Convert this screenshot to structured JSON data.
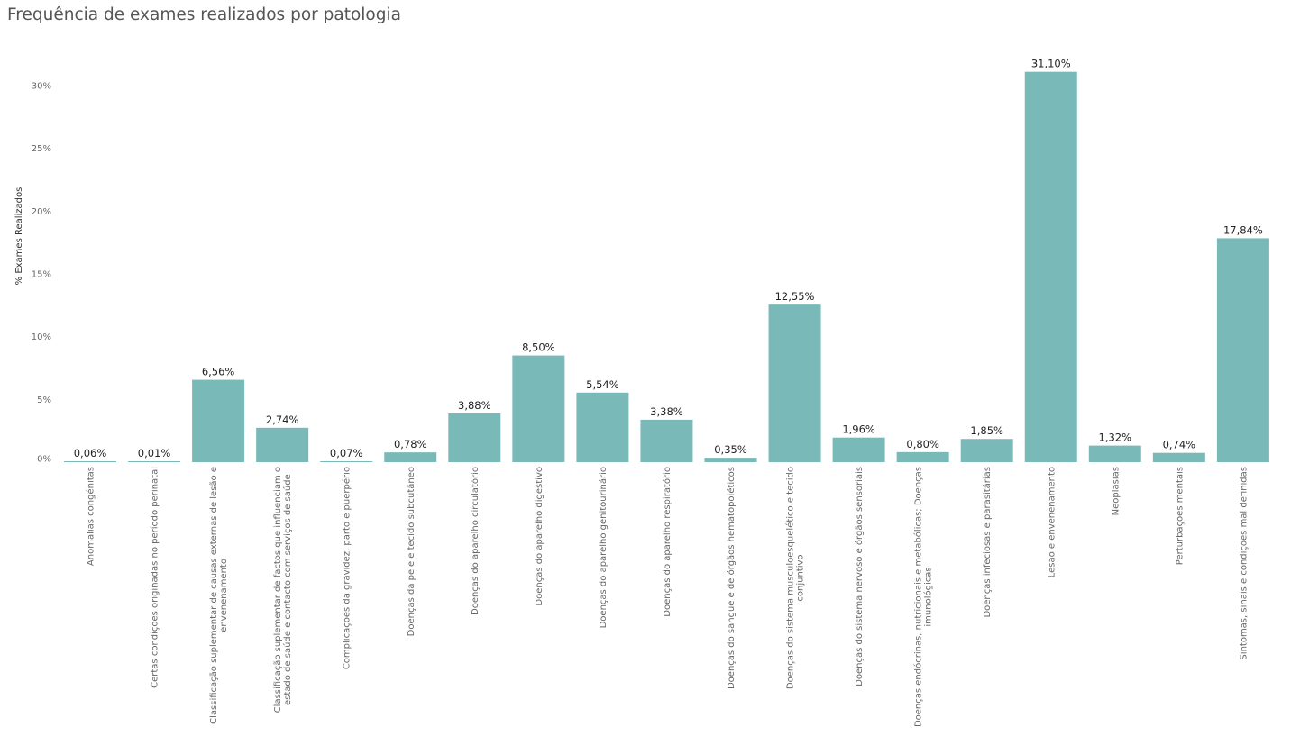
{
  "colors": {
    "bar": "#79bab8",
    "axis": "#cccccc"
  },
  "chart_data": {
    "type": "bar",
    "title": "Frequência de exames realizados por patologia",
    "ylabel": "% Exames Realizados",
    "ylim": [
      0,
      30
    ],
    "yticks": [
      "0%",
      "5%",
      "10%",
      "15%",
      "20%",
      "25%",
      "30%"
    ],
    "ytick_values": [
      0,
      5,
      10,
      15,
      20,
      25,
      30
    ],
    "categories": [
      [
        "Anomalias congénitas"
      ],
      [
        "Certas condições originadas no período perinatal"
      ],
      [
        "Classificação suplementar de causas externas de lesão e",
        "envenenamento"
      ],
      [
        "Classificação suplementar de factos que influenciam o",
        "estado de saúde e contacto com serviços de saúde"
      ],
      [
        "Complicações da gravidez, parto e puerpério"
      ],
      [
        "Doenças da pele e tecido subcutâneo"
      ],
      [
        "Doenças do aparelho circulatório"
      ],
      [
        "Doenças do aparelho digestivo"
      ],
      [
        "Doenças do aparelho genitourinário"
      ],
      [
        "Doenças do aparelho respiratório"
      ],
      [
        "Doenças do sangue e de órgãos hematopoiéticos"
      ],
      [
        "Doenças do sistema musculoesquelético e tecido",
        "conjuntivo"
      ],
      [
        "Doenças do sistema nervoso e órgãos sensoriais"
      ],
      [
        "Doenças endócrinas, nutricionais e metabólicas; Doenças",
        "imunológicas"
      ],
      [
        "Doenças infeciosas e parasitárias"
      ],
      [
        "Lesão e envenenamento"
      ],
      [
        "Neoplasias"
      ],
      [
        "Perturbações mentais"
      ],
      [
        "Sintomas, sinais e condições mal definidas"
      ]
    ],
    "values": [
      0.06,
      0.01,
      6.56,
      2.74,
      0.07,
      0.78,
      3.88,
      8.5,
      5.54,
      3.38,
      0.35,
      12.55,
      1.96,
      0.8,
      1.85,
      31.1,
      1.32,
      0.74,
      17.84
    ],
    "value_labels": [
      "0,06%",
      "0,01%",
      "6,56%",
      "2,74%",
      "0,07%",
      "0,78%",
      "3,88%",
      "8,50%",
      "5,54%",
      "3,38%",
      "0,35%",
      "12,55%",
      "1,96%",
      "0,80%",
      "1,85%",
      "31,10%",
      "1,32%",
      "0,74%",
      "17,84%"
    ],
    "grid": false,
    "legend": "none"
  }
}
